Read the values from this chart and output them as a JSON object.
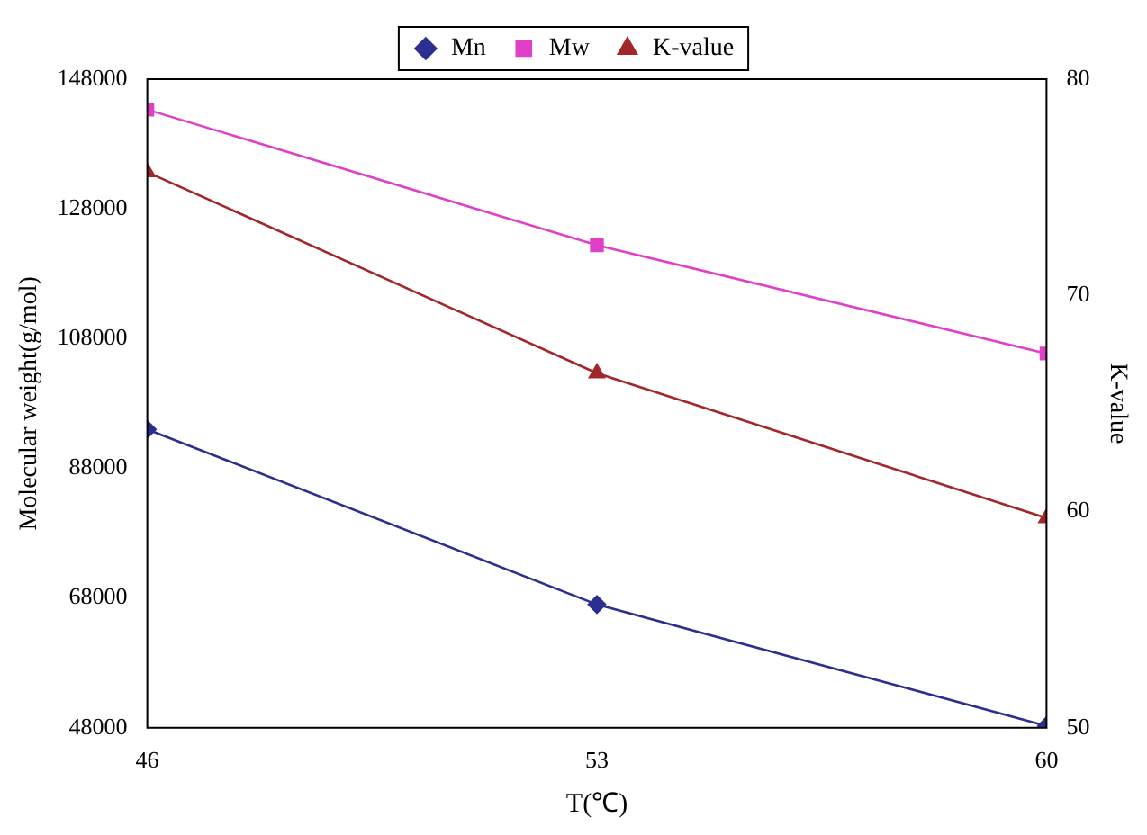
{
  "chart_data": {
    "type": "line",
    "xlabel": "T(℃)",
    "ylabel": "Molecular weight(g/mol)",
    "y2label": "K-value",
    "x": [
      46,
      53,
      60
    ],
    "xlim": [
      46,
      60
    ],
    "xticks": [
      46,
      53,
      60
    ],
    "ylim": [
      48000,
      148000
    ],
    "yticks": [
      48000,
      68000,
      88000,
      108000,
      128000,
      148000
    ],
    "y2lim": [
      50,
      80
    ],
    "y2ticks": [
      50,
      60,
      70,
      80
    ],
    "legend": "top",
    "grid": false,
    "line_style": "solid",
    "series": [
      {
        "name": "Mn",
        "color": "#2b2f8f",
        "marker": "diamond",
        "values": [
          94000,
          67000,
          48300
        ]
      },
      {
        "name": "Mw",
        "color": "#e040c8",
        "marker": "square",
        "values": [
          143300,
          122400,
          105700
        ]
      },
      {
        "name": "K-value",
        "color": "#a3262a",
        "marker": "triangle",
        "axis": "y2",
        "values": [
          75.7,
          66.4,
          59.7
        ]
      }
    ]
  }
}
